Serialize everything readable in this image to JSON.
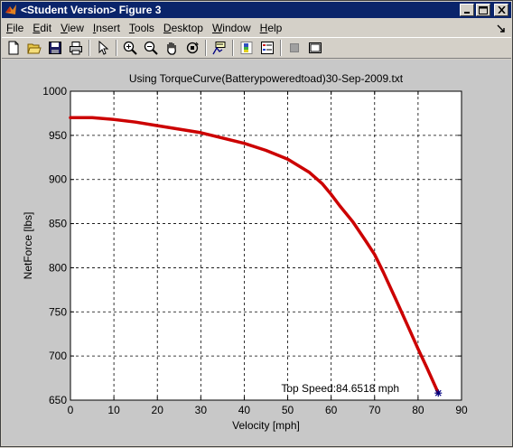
{
  "window": {
    "title": "<Student Version> Figure 3",
    "buttons": [
      "minimize",
      "maximize",
      "close"
    ]
  },
  "menubar": {
    "items": [
      {
        "label": "File",
        "accel": "F"
      },
      {
        "label": "Edit",
        "accel": "E"
      },
      {
        "label": "View",
        "accel": "V"
      },
      {
        "label": "Insert",
        "accel": "I"
      },
      {
        "label": "Tools",
        "accel": "T"
      },
      {
        "label": "Desktop",
        "accel": "D"
      },
      {
        "label": "Window",
        "accel": "W"
      },
      {
        "label": "Help",
        "accel": "H"
      }
    ]
  },
  "toolbar": {
    "buttons": [
      "new-figure",
      "open-file",
      "save",
      "print",
      "edit-plot-arrow",
      "zoom-in",
      "zoom-out",
      "pan",
      "rotate-3d",
      "data-cursor",
      "colorbar",
      "legend",
      "hide-plot-tools",
      "show-plot-tools"
    ]
  },
  "chart_data": {
    "type": "line",
    "title": "Using TorqueCurve(Batterypoweredtoad)30-Sep-2009.txt",
    "xlabel": "Velocity [mph]",
    "ylabel": "NetForce [lbs]",
    "xlim": [
      0,
      90
    ],
    "ylim": [
      650,
      1000
    ],
    "xticks": [
      0,
      10,
      20,
      30,
      40,
      50,
      60,
      70,
      80,
      90
    ],
    "yticks": [
      650,
      700,
      750,
      800,
      850,
      900,
      950,
      1000
    ],
    "grid": true,
    "series": [
      {
        "color": "#cc0000",
        "x": [
          0,
          5,
          10,
          15,
          20,
          25,
          30,
          35,
          40,
          45,
          50,
          55,
          58,
          60,
          62,
          65,
          68,
          70,
          72,
          75,
          78,
          80,
          82,
          84.65
        ],
        "y": [
          970,
          970,
          968,
          965,
          961,
          957,
          953,
          947,
          941,
          933,
          923,
          908,
          895,
          883,
          870,
          852,
          830,
          815,
          795,
          763,
          730,
          708,
          687,
          658
        ]
      }
    ],
    "marker": {
      "x": 84.65,
      "y": 658,
      "symbol": "*",
      "color": "#000080"
    },
    "annotation": {
      "text": "Top Speed:84.6518 mph",
      "x": 48.5,
      "y": 657
    }
  }
}
